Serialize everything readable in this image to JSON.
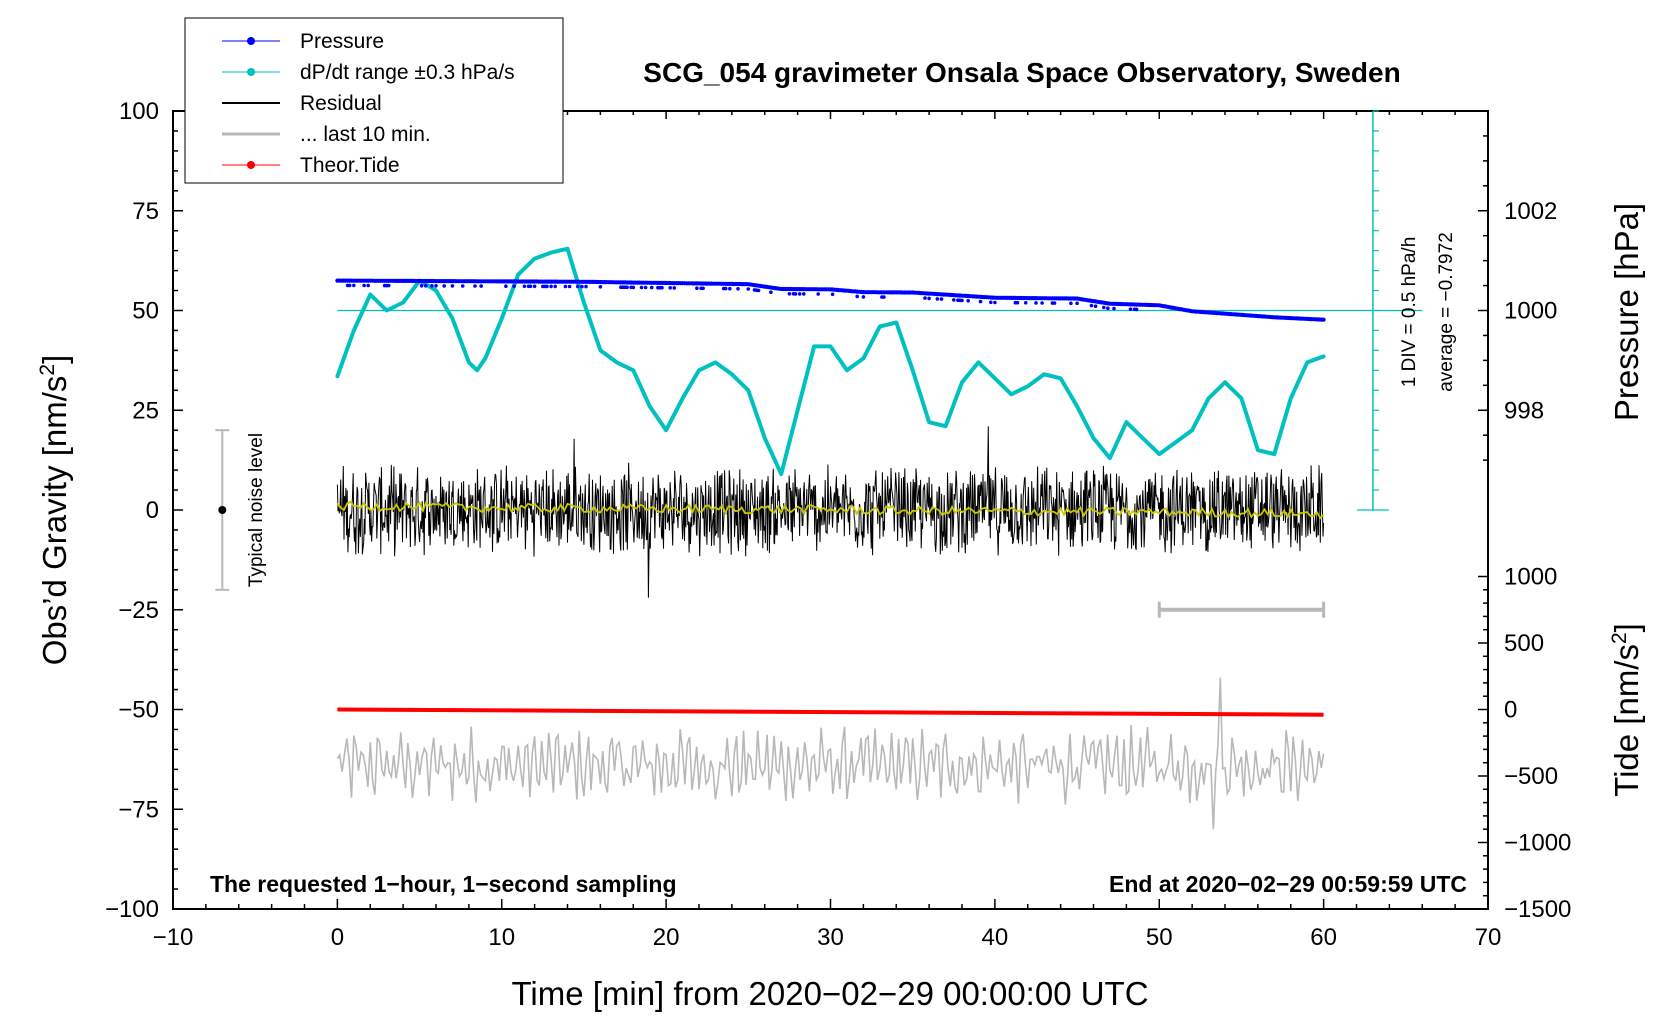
{
  "chart_data": {
    "type": "line",
    "title": "SCG_054 gravimeter Onsala Space Observatory, Sweden",
    "xlabel": "Time [min] from 2020−02−29 00:00:00 UTC",
    "ylabel_left": "Obs’d Gravity [nm/s²]",
    "ylabel_left_prefix": "Obs’d Gravity [nm/s",
    "ylabel_left_sup": "2",
    "ylabel_left_suffix": "]",
    "ylabel_right_pressure": "Pressure [hPa]",
    "ylabel_right_tide": "Tide [nm/s²]",
    "ylabel_right_tide_prefix": "Tide [nm/s",
    "ylabel_right_tide_sup": "2",
    "ylabel_right_tide_suffix": "]",
    "xlim": [
      -10,
      70
    ],
    "ylim": [
      -100,
      100
    ],
    "x_ticks": [
      -10,
      0,
      10,
      20,
      30,
      40,
      50,
      60,
      70
    ],
    "x_tick_labels": [
      "−10",
      "0",
      "10",
      "20",
      "30",
      "40",
      "50",
      "60",
      "70"
    ],
    "y_ticks": [
      -100,
      -75,
      -50,
      -25,
      0,
      25,
      50,
      75,
      100
    ],
    "y_tick_labels": [
      "−100",
      "−75",
      "−50",
      "−25",
      "0",
      "25",
      "50",
      "75",
      "100"
    ],
    "pressure_axis": {
      "ticks": [
        998,
        1000,
        1002
      ],
      "tick_labels": [
        "998",
        "1000",
        "1002"
      ],
      "hpa_per_left_unit": 0.08,
      "reference_hpa": 1000,
      "reference_left": 50
    },
    "tide_axis": {
      "ticks": [
        -1500,
        -1000,
        -500,
        0,
        500,
        1000
      ],
      "tick_labels": [
        "−1500",
        "−1000",
        "−500",
        "0",
        "500",
        "1000"
      ],
      "tide_per_left_unit": 30,
      "reference_tide": 0,
      "reference_left": -50
    },
    "legend": [
      {
        "label": "Pressure",
        "color": "#0000ff",
        "marker": true
      },
      {
        "label": "dP/dt range ±0.3 hPa/s",
        "color": "#00c0c0",
        "marker": true
      },
      {
        "label": "Residual",
        "color": "#000000",
        "marker": false
      },
      {
        "label": "... last 10 min.",
        "color": "#b8b8b8",
        "marker": false
      },
      {
        "label": "Theor.Tide",
        "color": "#ff0000",
        "marker": true
      }
    ],
    "series": [
      {
        "name": "Pressure",
        "color": "#0000ff",
        "style": "dots",
        "x": [
          0,
          5,
          10,
          15,
          18,
          20,
          25,
          27,
          30,
          32,
          35,
          40,
          45,
          47,
          50,
          52,
          55,
          57,
          60
        ],
        "y": [
          57.5,
          57.4,
          57.3,
          57.2,
          57.0,
          56.9,
          56.6,
          55.4,
          55.3,
          54.6,
          54.5,
          53.2,
          53.0,
          51.7,
          51.3,
          49.8,
          48.9,
          48.3,
          47.7
        ]
      },
      {
        "name": "dP/dt",
        "color": "#00c0c0",
        "style": "line",
        "x": [
          0,
          1,
          2,
          3,
          4,
          5,
          6,
          7,
          8,
          8.5,
          9,
          10,
          11,
          12,
          13,
          14,
          15,
          16,
          17,
          18,
          19,
          20,
          21,
          22,
          23,
          24,
          25,
          26,
          27,
          28,
          29,
          30,
          31,
          32,
          33,
          34,
          35,
          36,
          37,
          38,
          39,
          40,
          41,
          42,
          43,
          44,
          45,
          46,
          47,
          48,
          49,
          50,
          51,
          52,
          53,
          54,
          55,
          56,
          57,
          58,
          59,
          60
        ],
        "y": [
          33.5,
          45,
          54,
          50,
          52,
          57.5,
          55,
          48,
          37,
          35,
          38,
          48,
          59,
          63,
          64.5,
          65.5,
          52,
          40,
          37,
          35,
          26,
          20,
          28,
          35,
          37,
          34,
          30,
          18,
          9,
          25,
          41,
          41,
          35,
          38,
          46,
          47,
          35,
          22,
          21,
          32,
          37,
          33,
          29,
          31,
          34,
          33,
          26,
          18,
          13,
          22,
          18,
          14,
          17,
          20,
          28,
          32,
          28,
          15,
          14,
          28,
          37,
          38.5
        ]
      },
      {
        "name": "Residual",
        "color": "#000000",
        "style": "noise",
        "x_range": [
          0,
          60
        ],
        "center": 0,
        "amplitude": 11,
        "extremes": [
          21,
          -22
        ]
      },
      {
        "name": "Residual smoothed",
        "color": "#c8c800",
        "style": "line",
        "x": [
          0,
          5,
          10,
          15,
          20,
          25,
          30,
          35,
          40,
          45,
          50,
          55,
          60
        ],
        "y": [
          1,
          0.8,
          0.5,
          0.4,
          0.3,
          0.2,
          0.1,
          -0.2,
          -0.3,
          -0.4,
          -0.5,
          -0.7,
          -1
        ]
      },
      {
        "name": "Theor.Tide",
        "color": "#ff0000",
        "style": "line",
        "x": [
          0,
          60
        ],
        "y": [
          -50,
          -51.3
        ]
      },
      {
        "name": "last 10 min.",
        "color": "#b8b8b8",
        "style": "oscillation",
        "x_range": [
          0,
          60
        ],
        "center": -64,
        "amplitude": 9,
        "extremes": [
          -42,
          -80
        ]
      }
    ],
    "annotations": {
      "noise_label": "Typical noise level",
      "noise_bar": {
        "x": -7,
        "y_min": -20,
        "y_max": 20,
        "center": 0
      },
      "div_label": "1 DIV = 0.5 hPa/h",
      "average_label": "average = −0.7972",
      "div_scale": {
        "x": 63,
        "y_min": 0,
        "y_max": 100,
        "step": 5
      },
      "ref_line_y": 50,
      "last10_bar": {
        "x_start": 50,
        "x_end": 60,
        "y": -25
      },
      "sampling_note": "The requested 1−hour, 1−second sampling",
      "end_note": "End at 2020−02−29 00:59:59 UTC"
    }
  }
}
